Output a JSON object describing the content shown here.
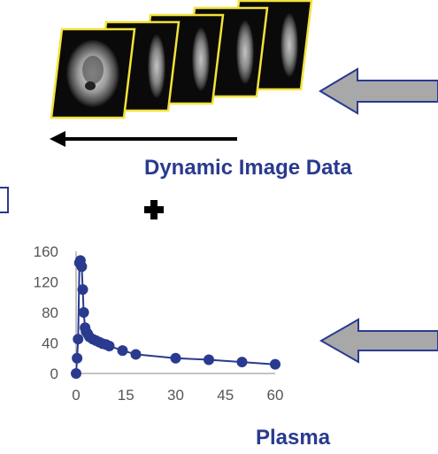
{
  "dynamic_label": "Dynamic Image Data",
  "plasma_label": "Plasma",
  "frame_count": 5,
  "colors": {
    "frame_border": "#f2e23a",
    "frame_fill": "#0a0a0a",
    "label": "#2a3a8f",
    "series": "#2a3a8f",
    "arrow_fill": "#a8a8a8",
    "arrow_stroke": "#2a3a8f"
  },
  "chart_data": {
    "type": "line",
    "title": "",
    "xlabel": "",
    "ylabel": "",
    "xlim": [
      0,
      60
    ],
    "ylim": [
      0,
      160
    ],
    "xticks": [
      0,
      15,
      30,
      45,
      60
    ],
    "yticks": [
      0,
      40,
      80,
      120,
      160
    ],
    "grid": false,
    "series": [
      {
        "x": [
          0,
          0.3,
          0.6,
          1,
          1.3,
          1.7,
          2,
          2.3,
          2.7,
          3,
          3.5,
          4,
          5,
          6,
          7,
          8,
          9,
          10,
          14,
          18,
          30,
          40,
          50,
          60
        ],
        "y": [
          0,
          20,
          45,
          145,
          148,
          140,
          110,
          80,
          60,
          55,
          52,
          48,
          45,
          43,
          41,
          39,
          38,
          36,
          30,
          25,
          20,
          18,
          15,
          12
        ]
      }
    ]
  }
}
